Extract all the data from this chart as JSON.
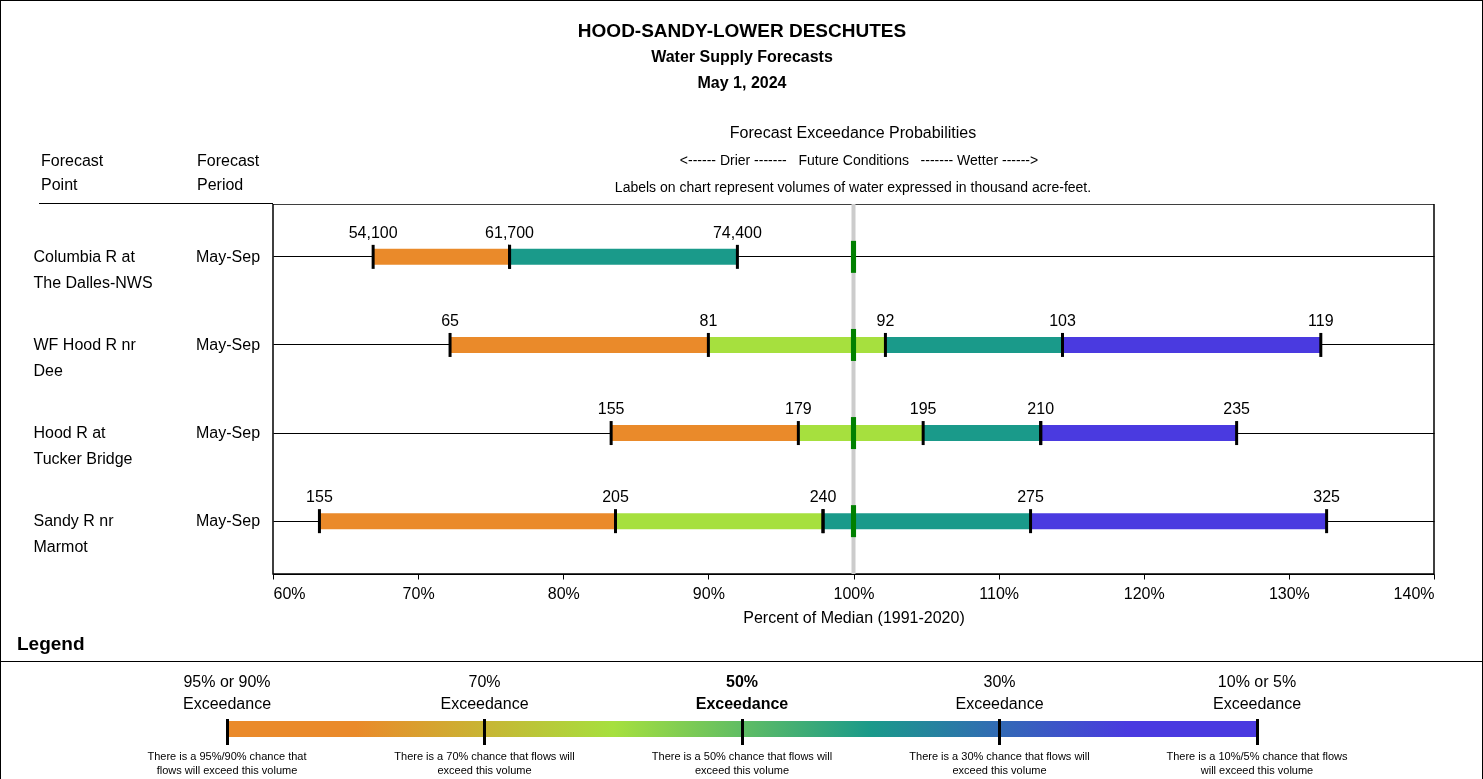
{
  "chart_data": {
    "type": "bar",
    "orientation": "horizontal",
    "title": "HOOD-SANDY-LOWER DESCHUTES",
    "subtitle": "Water Supply Forecasts",
    "xlabel": "Percent of Median (1991-2020)",
    "legend_title": "Legend",
    "grid": "y",
    "categories": [
      "Columbia R at\nThe Dalles-NWS",
      "WF Hood R nr\nDee",
      "Hood R at\nTucker Bridge",
      "Sandy R nr\nMarmot"
    ],
    "xlim": [
      60,
      140
    ],
    "xticks": [
      {
        "value": 60,
        "label": "60%"
      },
      {
        "value": 70,
        "label": "70%"
      },
      {
        "value": 80,
        "label": "80%"
      },
      {
        "value": 90,
        "label": "90%"
      },
      {
        "value": 100,
        "label": "100%"
      },
      {
        "value": 110,
        "label": "110%"
      },
      {
        "value": 120,
        "label": "120%"
      },
      {
        "value": 130,
        "label": "130%"
      },
      {
        "value": 140,
        "label": "140%"
      }
    ],
    "ref_lines": [
      {
        "axis": "x",
        "value": 100,
        "color": "#cccccc"
      }
    ],
    "series": [
      {
        "color": "#ea8a2a",
        "base": [
          66.9,
          72.2,
          83.3,
          63.2
        ],
        "values": [
          9.4,
          17.8,
          12.9,
          20.4
        ]
      },
      {
        "color": "#a6e03e",
        "base": [
          null,
          90.0,
          96.2,
          83.6
        ],
        "values": [
          null,
          12.2,
          8.6,
          14.3
        ]
      },
      {
        "color": "#1a9a8a",
        "base": [
          76.3,
          102.2,
          104.8,
          97.9
        ],
        "values": [
          15.7,
          12.2,
          8.1,
          14.3
        ]
      },
      {
        "color": "#4a3ae0",
        "base": [
          null,
          114.4,
          112.9,
          112.2
        ],
        "values": [
          null,
          17.8,
          13.5,
          20.4
        ]
      }
    ],
    "annotations": [
      "May 1, 2024",
      "Forecast\nPoint",
      "Forecast\nPeriod",
      "Forecast Exceedance Probabilities",
      "<------ Drier -------   Future Conditions   ------- Wetter ------>",
      "Labels on chart represent volumes of water expressed in thousand acre-feet.",
      "May-Sep",
      "May-Sep",
      "May-Sep",
      "May-Sep",
      "95% or 90% Exceedance",
      "70% Exceedance",
      "50% Exceedance",
      "30% Exceedance",
      "10% or 5% Exceedance",
      "There is a 95%/90% chance that flows will exceed this volume",
      "There is a 70% chance that flows will exceed this volume",
      "There is a 50% chance that flows will exceed this volume",
      "There is a 30% chance that flows will exceed this volume",
      "There is a 10%/5% chance that flows will exceed this volume",
      {
        "text": "54,100",
        "x": 66.9,
        "y": "Columbia R at\nThe Dalles-NWS"
      },
      {
        "text": "61,700",
        "x": 76.3,
        "y": "Columbia R at\nThe Dalles-NWS"
      },
      {
        "text": "74,400",
        "x": 92.0,
        "y": "Columbia R at\nThe Dalles-NWS"
      },
      {
        "text": "65",
        "x": 72.2,
        "y": "WF Hood R nr\nDee"
      },
      {
        "text": "81",
        "x": 90.0,
        "y": "WF Hood R nr\nDee"
      },
      {
        "text": "92",
        "x": 102.2,
        "y": "WF Hood R nr\nDee"
      },
      {
        "text": "103",
        "x": 114.4,
        "y": "WF Hood R nr\nDee"
      },
      {
        "text": "119",
        "x": 132.2,
        "y": "WF Hood R nr\nDee"
      },
      {
        "text": "155",
        "x": 83.3,
        "y": "Hood R at\nTucker Bridge"
      },
      {
        "text": "179",
        "x": 96.2,
        "y": "Hood R at\nTucker Bridge"
      },
      {
        "text": "195",
        "x": 104.8,
        "y": "Hood R at\nTucker Bridge"
      },
      {
        "text": "210",
        "x": 112.9,
        "y": "Hood R at\nTucker Bridge"
      },
      {
        "text": "235",
        "x": 126.4,
        "y": "Hood R at\nTucker Bridge"
      },
      {
        "text": "155",
        "x": 63.2,
        "y": "Sandy R nr\nMarmot"
      },
      {
        "text": "205",
        "x": 83.6,
        "y": "Sandy R nr\nMarmot"
      },
      {
        "text": "240",
        "x": 97.9,
        "y": "Sandy R nr\nMarmot"
      },
      {
        "text": "275",
        "x": 112.2,
        "y": "Sandy R nr\nMarmot"
      },
      {
        "text": "325",
        "x": 132.6,
        "y": "Sandy R nr\nMarmot"
      }
    ]
  }
}
